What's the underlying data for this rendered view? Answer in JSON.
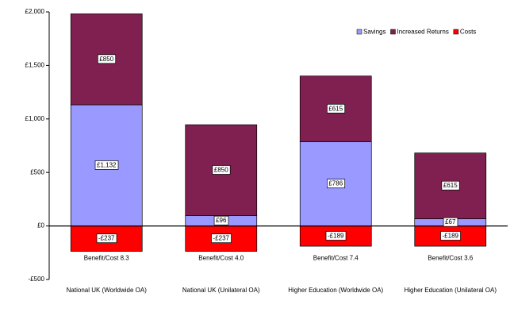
{
  "chart_data": {
    "type": "stacked-bar",
    "categories": [
      "National UK (Worldwide OA)",
      "National UK (Unilateral OA)",
      "Higher Education (Worldwide OA)",
      "Higher Education (Unilateral OA)"
    ],
    "annotations": [
      "Benefit/Cost 8.3",
      "Benefit/Cost 4.0",
      "Benefit/Cost 7.4",
      "Benefit/Cost 3.6"
    ],
    "series": [
      {
        "name": "Savings",
        "color": "#9999ff",
        "values": [
          1132,
          96,
          786,
          67
        ],
        "value_labels": [
          "£1,132",
          "£96",
          "£786",
          "£67"
        ]
      },
      {
        "name": "Increased Returns",
        "color": "#802050",
        "values": [
          850,
          850,
          615,
          615
        ],
        "value_labels": [
          "£850",
          "£850",
          "£615",
          "£615"
        ]
      },
      {
        "name": "Costs",
        "color": "#ff0000",
        "values": [
          -237,
          -237,
          -189,
          -189
        ],
        "value_labels": [
          "-£237",
          "-£237",
          "-£189",
          "-£189"
        ]
      }
    ],
    "ylim": [
      -500,
      2000
    ],
    "yticks": [
      {
        "value": -500,
        "label": "-£500"
      },
      {
        "value": 0,
        "label": "£0"
      },
      {
        "value": 500,
        "label": "£500"
      },
      {
        "value": 1000,
        "label": "£1,000"
      },
      {
        "value": 1500,
        "label": "£1,500"
      },
      {
        "value": 2000,
        "label": "£2,000"
      }
    ],
    "legend": "top-right",
    "grid": false
  }
}
